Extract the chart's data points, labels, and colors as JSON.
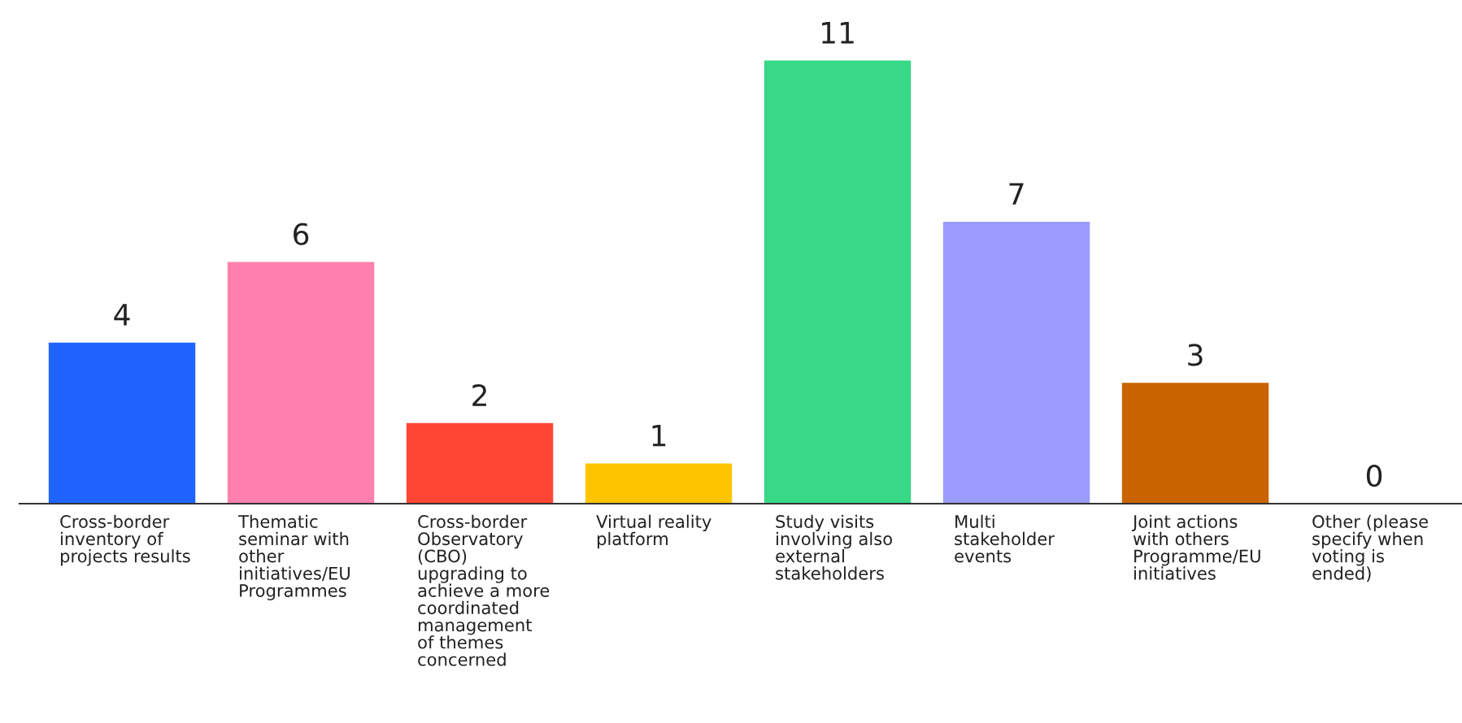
{
  "chart_data": {
    "type": "bar",
    "categories": [
      "Cross-border\ninventory of\nprojects results",
      "Thematic\nseminar with\nother\ninitiatives/EU\nProgrammes",
      "Cross-border\nObservatory\n(CBO)\nupgrading to\nachieve a more\ncoordinated\nmanagement\nof themes\nconcerned",
      "Virtual reality\nplatform",
      "Study visits\ninvolving also\nexternal\nstakeholders",
      "Multi\nstakeholder\nevents",
      "Joint actions\nwith others\nProgramme/EU\ninitiatives",
      "Other (please\nspecify when\nvoting is\nended)"
    ],
    "values": [
      4,
      6,
      2,
      1,
      11,
      7,
      3,
      0
    ],
    "colors": [
      "#1f64ff",
      "#ff80ad",
      "#ff4533",
      "#ffc400",
      "#37d986",
      "#9b9bff",
      "#c96400",
      "#9b9bff"
    ],
    "data_labels": true
  }
}
